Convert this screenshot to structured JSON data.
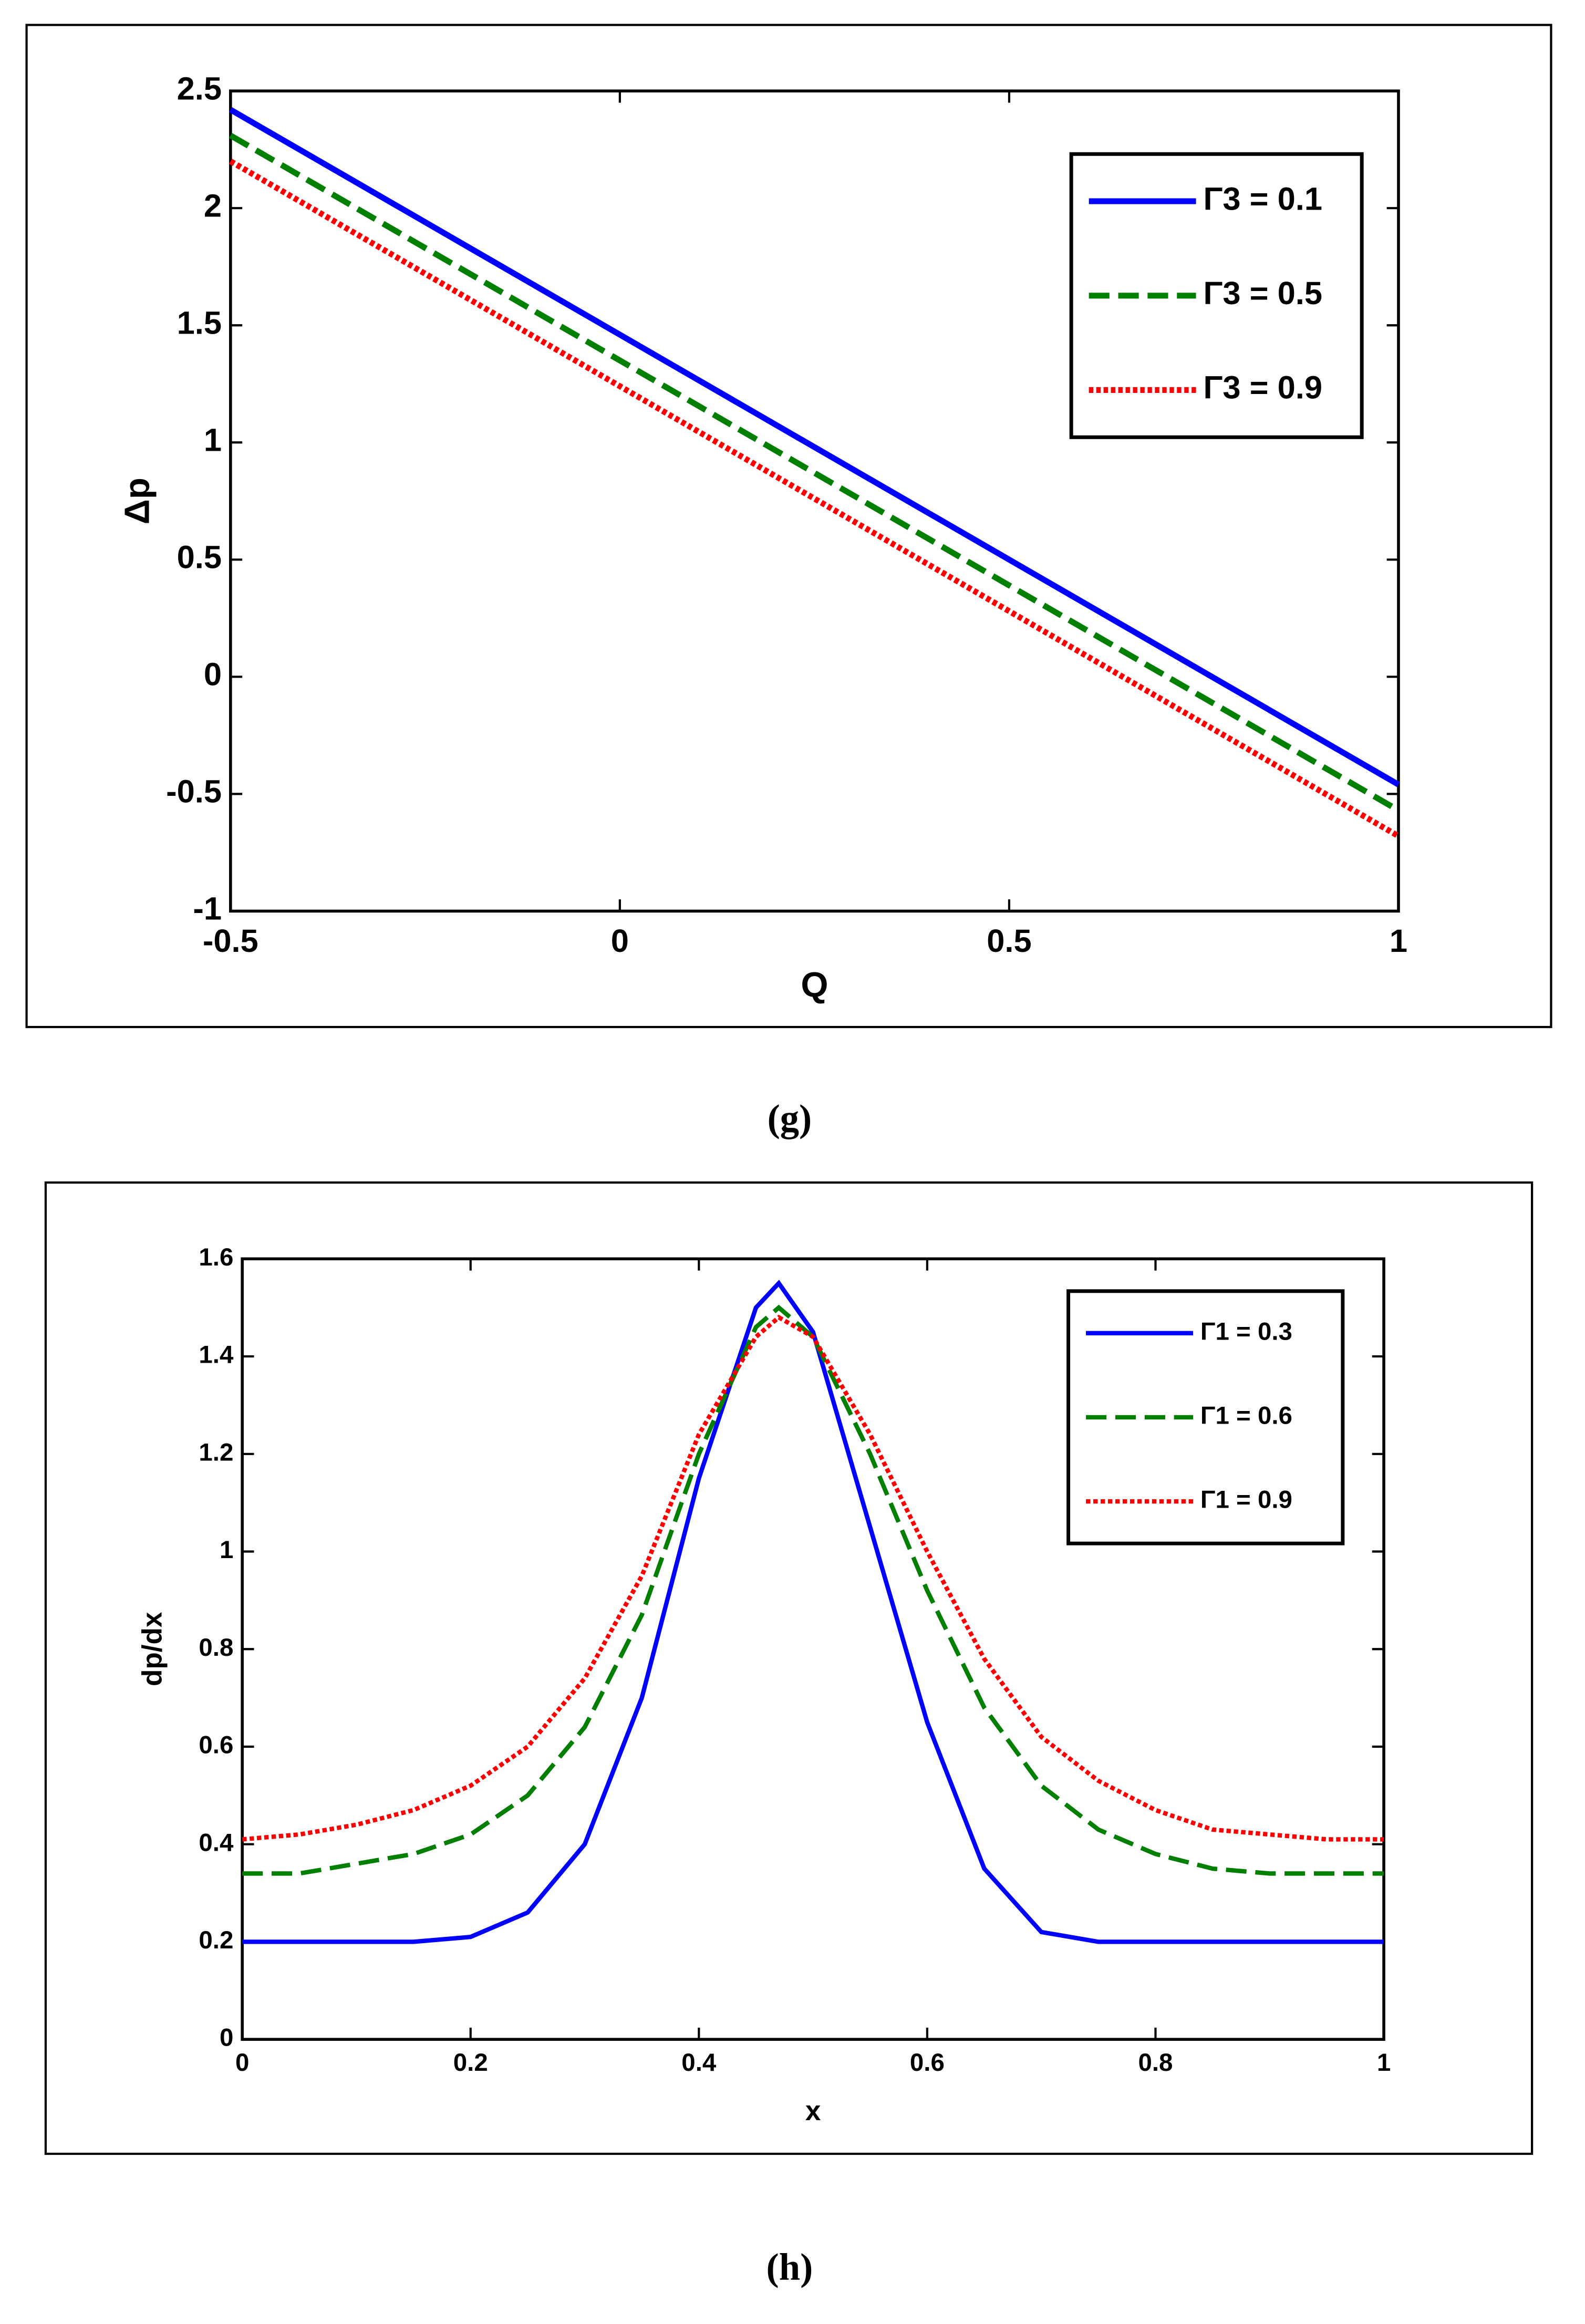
{
  "chart_data": [
    {
      "type": "line",
      "caption": "(g)",
      "xlabel": "Q",
      "ylabel": "Δp",
      "x": [
        -0.5,
        0,
        0.5,
        1
      ],
      "xlim": [
        -0.5,
        1
      ],
      "xticks": [
        -0.5,
        0,
        0.5,
        1
      ],
      "ylim": [
        -1,
        2.5
      ],
      "yticks": [
        -1,
        -0.5,
        0,
        0.5,
        1,
        1.5,
        2,
        2.5
      ],
      "legend": "upper right",
      "series": [
        {
          "name": "Γ3 = 0.1",
          "color": "#0000ff",
          "dash": "solid",
          "values": [
            2.42,
            1.46,
            0.5,
            -0.46
          ]
        },
        {
          "name": "Γ3 = 0.5",
          "color": "#007f00",
          "dash": "dashed",
          "values": [
            2.31,
            1.35,
            0.39,
            -0.57
          ]
        },
        {
          "name": "Γ3 = 0.9",
          "color": "#ff0000",
          "dash": "dotted",
          "values": [
            2.2,
            1.24,
            0.28,
            -0.68
          ]
        }
      ]
    },
    {
      "type": "line",
      "caption": "(h)",
      "xlabel": "x",
      "ylabel": "dp/dx",
      "x": [
        0,
        0.05,
        0.1,
        0.15,
        0.2,
        0.25,
        0.3,
        0.35,
        0.4,
        0.45,
        0.47,
        0.5,
        0.55,
        0.6,
        0.65,
        0.7,
        0.75,
        0.8,
        0.85,
        0.9,
        0.95,
        1
      ],
      "xlim": [
        0,
        1
      ],
      "xticks": [
        0,
        0.2,
        0.4,
        0.6,
        0.8,
        1
      ],
      "ylim": [
        0,
        1.6
      ],
      "yticks": [
        0,
        0.2,
        0.4,
        0.6,
        0.8,
        1,
        1.2,
        1.4,
        1.6
      ],
      "legend": "upper right",
      "series": [
        {
          "name": "Γ1 = 0.3",
          "color": "#0000ff",
          "dash": "solid",
          "values": [
            0.2,
            0.2,
            0.2,
            0.2,
            0.21,
            0.26,
            0.4,
            0.7,
            1.15,
            1.5,
            1.55,
            1.45,
            1.05,
            0.65,
            0.35,
            0.22,
            0.2,
            0.2,
            0.2,
            0.2,
            0.2,
            0.2
          ]
        },
        {
          "name": "Γ1 = 0.6",
          "color": "#007f00",
          "dash": "dashed",
          "values": [
            0.34,
            0.34,
            0.36,
            0.38,
            0.42,
            0.5,
            0.64,
            0.87,
            1.2,
            1.46,
            1.5,
            1.44,
            1.2,
            0.92,
            0.68,
            0.52,
            0.43,
            0.38,
            0.35,
            0.34,
            0.34,
            0.34
          ]
        },
        {
          "name": "Γ1 = 0.9",
          "color": "#ff0000",
          "dash": "dotted",
          "values": [
            0.41,
            0.42,
            0.44,
            0.47,
            0.52,
            0.6,
            0.74,
            0.95,
            1.24,
            1.44,
            1.48,
            1.44,
            1.24,
            1.0,
            0.78,
            0.62,
            0.53,
            0.47,
            0.43,
            0.42,
            0.41,
            0.41
          ]
        }
      ]
    }
  ]
}
